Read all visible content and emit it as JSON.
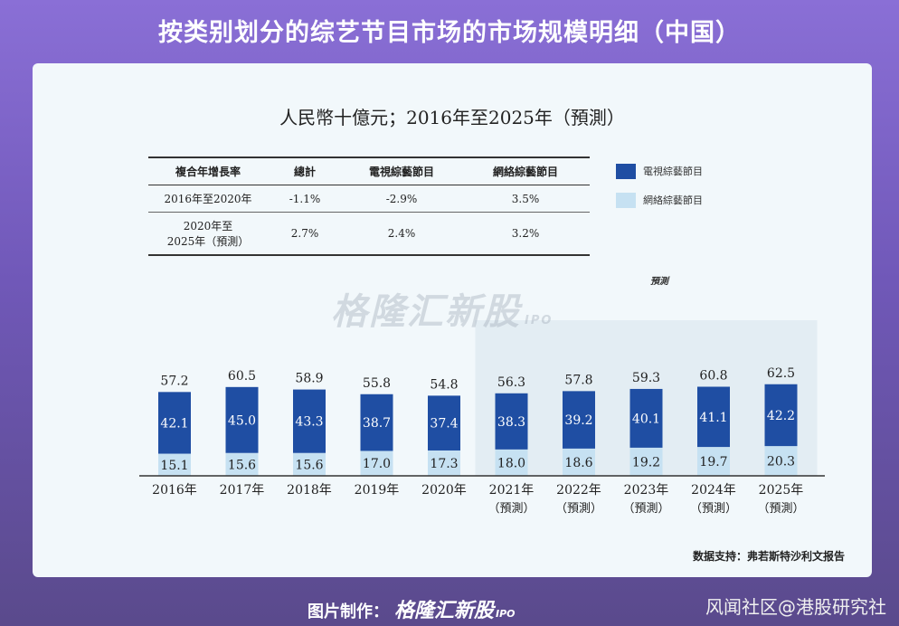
{
  "header": {
    "title": "按类别划分的综艺节目市场的市场规模明细（中国）"
  },
  "card": {
    "subtitle": "人民幣十億元；2016年至2025年（預測）",
    "cagr_table": {
      "headers": [
        "複合年增長率",
        "總計",
        "電視綜藝節目",
        "網絡綜藝節目"
      ],
      "rows": [
        {
          "period": "2016年至2020年",
          "period_line2": "",
          "total": "-1.1%",
          "tv": "-2.9%",
          "online": "3.5%"
        },
        {
          "period": "2020年至",
          "period_line2": "2025年（預測）",
          "total": "2.7%",
          "tv": "2.4%",
          "online": "3.2%"
        }
      ]
    },
    "legend": [
      {
        "label": "電視綜藝節目",
        "color": "#1f4ea3"
      },
      {
        "label": "網絡綜藝節目",
        "color": "#c6e1f2"
      }
    ],
    "forecast_label": "預測",
    "watermark": "格隆汇新股",
    "watermark_ipo": "IPO",
    "source": "数据支持：弗若斯特沙利文报告"
  },
  "chart_data": {
    "type": "bar",
    "stacked": true,
    "title": "人民幣十億元；2016年至2025年（預測）",
    "categories": [
      "2016年",
      "2017年",
      "2018年",
      "2019年",
      "2020年",
      "2021年",
      "2022年",
      "2023年",
      "2024年",
      "2025年"
    ],
    "category_sublabels": [
      "",
      "",
      "",
      "",
      "",
      "（預測）",
      "（預測）",
      "（預測）",
      "（預測）",
      "（預測）"
    ],
    "series": [
      {
        "name": "網絡綜藝節目",
        "values": [
          15.1,
          15.6,
          15.6,
          17.0,
          17.3,
          18.0,
          18.6,
          19.2,
          19.7,
          20.3
        ]
      },
      {
        "name": "電視綜藝節目",
        "values": [
          42.1,
          45.0,
          43.3,
          38.7,
          37.4,
          38.3,
          39.2,
          40.1,
          41.1,
          42.2
        ]
      }
    ],
    "totals": [
      57.2,
      60.5,
      58.9,
      55.8,
      54.8,
      56.3,
      57.8,
      59.3,
      60.8,
      62.5
    ],
    "forecast_start_index": 5,
    "ylim": [
      0,
      70
    ],
    "colors": {
      "online": "#c6e1f2",
      "tv": "#1f4ea3",
      "forecast_bg": "#e3edf3"
    }
  },
  "footer": {
    "made_by_label": "图片制作：",
    "brand": "格隆汇新股",
    "brand_ipo": "IPO",
    "credit": "风闻社区@港股研究社"
  }
}
